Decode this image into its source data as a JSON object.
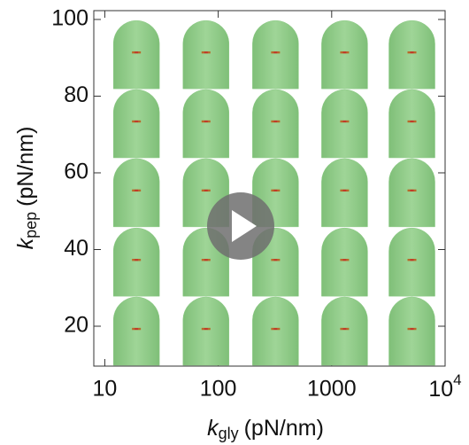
{
  "chart_data": {
    "type": "image-grid",
    "xlabel": {
      "symbol": "k",
      "subscript": "gly",
      "unit": "(pN/nm)"
    },
    "ylabel": {
      "symbol": "k",
      "subscript": "pep",
      "unit": "(pN/nm)"
    },
    "x": [
      19,
      78,
      320,
      1300,
      5100
    ],
    "y": [
      19.3,
      37.3,
      55.4,
      73.4,
      91.4
    ],
    "xlog": true,
    "xlim": [
      8,
      10000
    ],
    "xticks": [
      10,
      100,
      1000,
      {
        "value": 10000,
        "label": "10",
        "exponent": "4"
      }
    ],
    "ylim": [
      9.6,
      102.3
    ],
    "yticks": [
      20,
      40,
      60,
      80,
      100
    ],
    "color": "#8ecb87"
  }
}
